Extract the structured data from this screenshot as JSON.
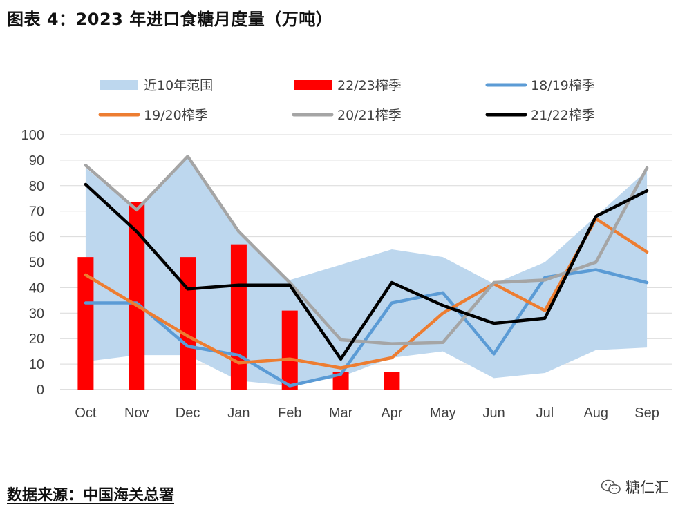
{
  "title": "图表 4：2023 年进口食糖月度量（万吨）",
  "source": "数据来源：中国海关总署",
  "watermark": {
    "text": "糖仁汇",
    "icon": "wechat-icon"
  },
  "chart_data": {
    "type": "bar+line+area",
    "categories": [
      "Oct",
      "Nov",
      "Dec",
      "Jan",
      "Feb",
      "Mar",
      "Apr",
      "May",
      "Jun",
      "Jul",
      "Aug",
      "Sep"
    ],
    "ylim": [
      0,
      100
    ],
    "yticks": [
      0,
      10,
      20,
      30,
      40,
      50,
      60,
      70,
      80,
      90,
      100
    ],
    "grid": true,
    "legend_position": "top",
    "range": {
      "name": "近10年范围",
      "color": "#bdd7ee",
      "lower": [
        11,
        13.5,
        13.5,
        3.5,
        1.5,
        5,
        12.5,
        15,
        4.5,
        6.5,
        15.5,
        16.5
      ],
      "upper": [
        87,
        70,
        91,
        62,
        43,
        49,
        55,
        52,
        41.5,
        50,
        68,
        86
      ]
    },
    "bars": {
      "name": "22/23榨季",
      "color": "#ff0000",
      "values": [
        52,
        73.5,
        52,
        57,
        31,
        7,
        7,
        null,
        null,
        null,
        null,
        null
      ]
    },
    "series": [
      {
        "name": "18/19榨季",
        "color": "#5b9bd5",
        "values": [
          34,
          34,
          17,
          13.5,
          1.5,
          6,
          34,
          38,
          14,
          44,
          47,
          42
        ]
      },
      {
        "name": "19/20榨季",
        "color": "#ed7d31",
        "values": [
          45,
          33,
          21,
          10.5,
          12,
          8.5,
          12.5,
          30,
          41.5,
          31,
          67,
          54
        ]
      },
      {
        "name": "20/21榨季",
        "color": "#a5a5a5",
        "values": [
          88,
          70.5,
          91.5,
          62,
          42,
          19.5,
          18,
          18.5,
          42,
          43,
          50,
          87
        ]
      },
      {
        "name": "21/22榨季",
        "color": "#000000",
        "values": [
          80.5,
          62,
          39.5,
          41,
          41,
          12,
          42,
          33,
          26,
          28,
          68,
          78
        ]
      }
    ]
  }
}
